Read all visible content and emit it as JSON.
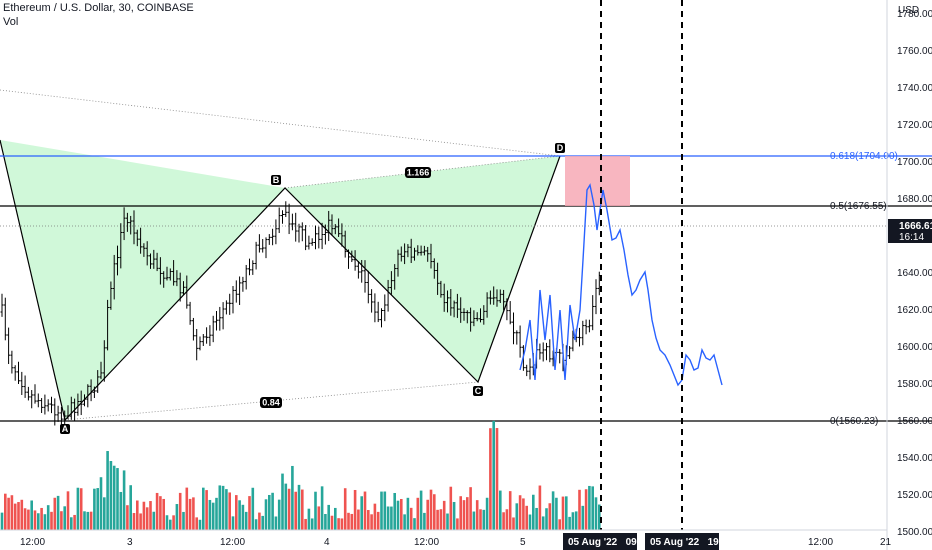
{
  "header": {
    "title": "Ethereum / U.S. Dollar, 30, COINBASE",
    "volume_label": "Vol",
    "currency": "USD"
  },
  "price_axis": {
    "ticks": [
      1780,
      1760,
      1740,
      1720,
      1700,
      1680,
      1660,
      1640,
      1620,
      1600,
      1580,
      1560,
      1540,
      1520,
      1500
    ],
    "tick_labels": [
      "1780.00",
      "1760.00",
      "1740.00",
      "1720.00",
      "1700.00",
      "1680.00",
      "1660.00",
      "1640.00",
      "1620.00",
      "1600.00",
      "1580.00",
      "1560.00",
      "1540.00",
      "1520.00",
      "1500.00"
    ],
    "current_price": "1666.61",
    "countdown": "16:14"
  },
  "time_axis": {
    "labels": [
      "12:00",
      "3",
      "12:00",
      "4",
      "12:00",
      "5",
      "12:00",
      "21"
    ],
    "badge_1": "05 Aug '22   09:30",
    "badge_2": "05 Aug '22   19:30"
  },
  "fibonacci": {
    "levels": [
      {
        "label": "0.618(1704.00)",
        "price": 1704.0,
        "color": "#2962ff"
      },
      {
        "label": "0.5(1676.55)",
        "price": 1676.55,
        "color": "#000000"
      },
      {
        "label": "0(1560.23)",
        "price": 1560.23,
        "color": "#000000"
      }
    ]
  },
  "pattern": {
    "points": [
      "A",
      "B",
      "C",
      "D"
    ],
    "ratios": [
      "1.166",
      "0.84"
    ],
    "fill_color": "#b9f6ca",
    "target_zone_color": "#f7a9b5"
  },
  "colors": {
    "bull_volume": "#26a69a",
    "bear_volume": "#ef5350",
    "forecast_line": "#2962ff"
  }
}
